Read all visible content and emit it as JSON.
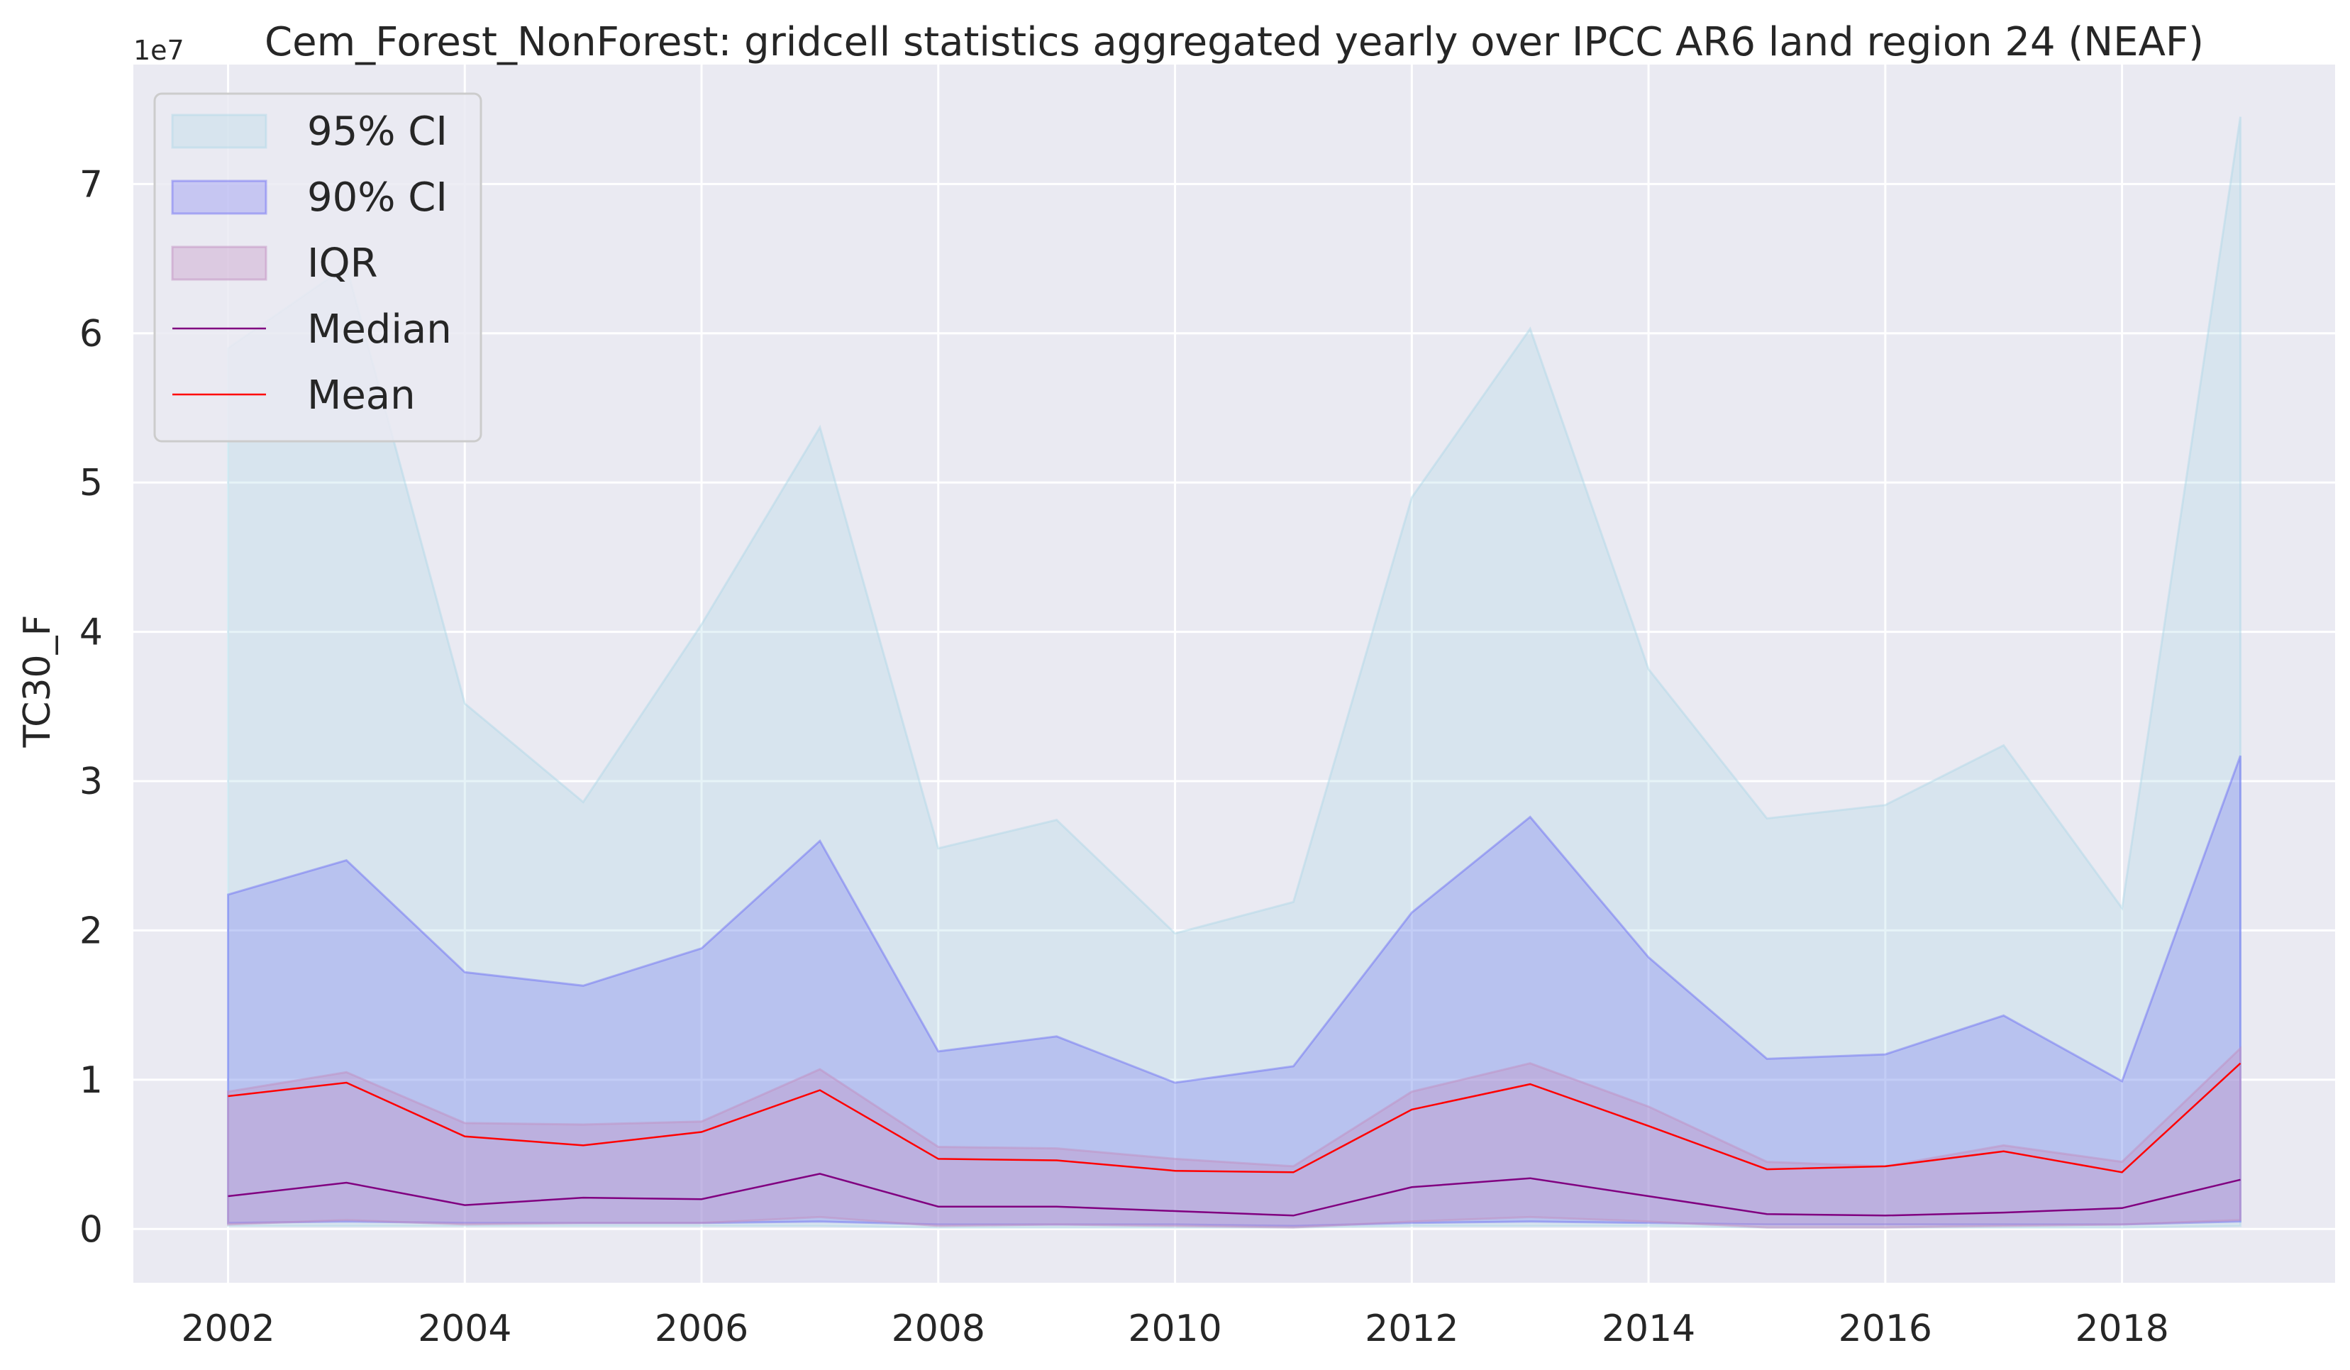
{
  "chart_data": {
    "type": "area",
    "title": "Cem_Forest_NonForest: gridcell statistics aggregated yearly over IPCC AR6 land region 24 (NEAF)",
    "xlabel": "",
    "ylabel": "TC30_F",
    "y_offset_label": "1e7",
    "xlim": [
      2001.2,
      2019.8
    ],
    "ylim": [
      -0.36,
      7.8
    ],
    "x_ticks": [
      2002,
      2004,
      2006,
      2008,
      2010,
      2012,
      2014,
      2016,
      2018
    ],
    "x_tick_labels": [
      "2002",
      "2004",
      "2006",
      "2008",
      "2010",
      "2012",
      "2014",
      "2016",
      "2018"
    ],
    "y_ticks": [
      0,
      1,
      2,
      3,
      4,
      5,
      6,
      7
    ],
    "y_tick_labels": [
      "0",
      "1",
      "2",
      "3",
      "4",
      "5",
      "6",
      "7"
    ],
    "grid": true,
    "legend_position": "top-left",
    "x": [
      2002,
      2003,
      2004,
      2005,
      2006,
      2007,
      2008,
      2009,
      2010,
      2011,
      2012,
      2013,
      2014,
      2015,
      2016,
      2017,
      2018,
      2019
    ],
    "bands": [
      {
        "name": "95% CI",
        "color": "#add8e6",
        "opacity": 0.3,
        "lower": [
          0.02,
          0.02,
          0.02,
          0.02,
          0.02,
          0.02,
          0.01,
          0.01,
          0.01,
          0.01,
          0.02,
          0.02,
          0.02,
          0.01,
          0.01,
          0.01,
          0.01,
          0.02
        ],
        "upper": [
          5.9,
          6.45,
          3.52,
          2.86,
          4.05,
          5.37,
          2.55,
          2.74,
          1.98,
          2.19,
          4.9,
          6.03,
          3.75,
          2.75,
          2.84,
          3.24,
          2.15,
          7.45
        ]
      },
      {
        "name": "90% CI",
        "color": "#5a5af5",
        "opacity": 0.25,
        "lower": [
          0.04,
          0.05,
          0.04,
          0.04,
          0.04,
          0.05,
          0.03,
          0.03,
          0.03,
          0.02,
          0.04,
          0.05,
          0.04,
          0.03,
          0.03,
          0.03,
          0.03,
          0.05
        ],
        "upper": [
          2.24,
          2.47,
          1.72,
          1.63,
          1.88,
          2.6,
          1.19,
          1.29,
          0.98,
          1.09,
          2.12,
          2.76,
          1.82,
          1.14,
          1.17,
          1.43,
          0.99,
          3.17
        ]
      },
      {
        "name": "IQR",
        "color": "#c290c2",
        "opacity": 0.35,
        "lower": [
          0.03,
          0.06,
          0.03,
          0.04,
          0.04,
          0.08,
          0.02,
          0.03,
          0.02,
          0.01,
          0.05,
          0.08,
          0.05,
          0.01,
          0.01,
          0.02,
          0.03,
          0.06
        ],
        "upper": [
          0.92,
          1.05,
          0.71,
          0.7,
          0.72,
          1.07,
          0.55,
          0.54,
          0.47,
          0.42,
          0.92,
          1.11,
          0.82,
          0.45,
          0.42,
          0.56,
          0.45,
          1.21
        ]
      }
    ],
    "series": [
      {
        "name": "Median",
        "color": "#800080",
        "values": [
          0.22,
          0.31,
          0.16,
          0.21,
          0.2,
          0.37,
          0.15,
          0.15,
          0.12,
          0.09,
          0.28,
          0.34,
          0.22,
          0.1,
          0.09,
          0.11,
          0.14,
          0.33
        ]
      },
      {
        "name": "Mean",
        "color": "#ff0000",
        "values": [
          0.89,
          0.98,
          0.62,
          0.56,
          0.65,
          0.93,
          0.47,
          0.46,
          0.39,
          0.38,
          0.8,
          0.97,
          0.69,
          0.4,
          0.42,
          0.52,
          0.38,
          1.11
        ]
      }
    ],
    "legend": [
      "95% CI",
      "90% CI",
      "IQR",
      "Median",
      "Mean"
    ]
  },
  "colors": {
    "background": "#ffffff",
    "plot_background": "#eaeaf2",
    "grid": "#ffffff",
    "legend_frame": "#cccccc",
    "text": "#262626"
  }
}
